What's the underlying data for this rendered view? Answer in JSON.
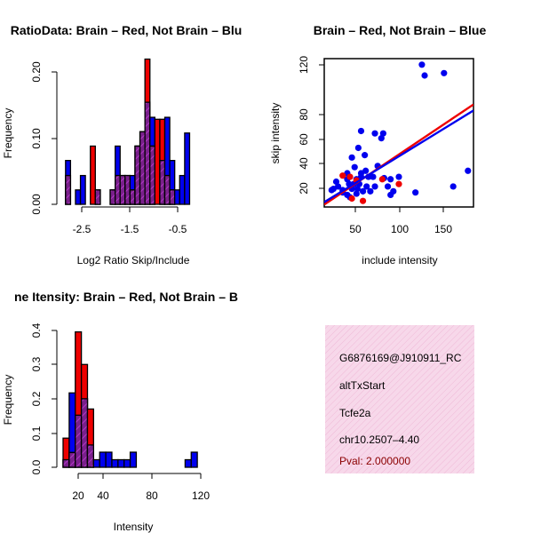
{
  "charts": [
    {
      "id": "ratio",
      "type": "bar",
      "title": "RatioData: Brain – Red, Not Brain – Blu",
      "xlabel": "Log2 Ratio Skip/Include",
      "ylabel": "Frequency",
      "xticks": [
        "-2.5",
        "-1.5",
        "-0.5"
      ],
      "yticks": [
        "0.00",
        "0.10",
        "0.20"
      ]
    },
    {
      "id": "scatter",
      "type": "scatter",
      "title": "Brain – Red, Not Brain – Blue",
      "xlabel": "include intensity",
      "ylabel": "skip intensity",
      "xticks": [
        "50",
        "100",
        "150"
      ],
      "yticks": [
        "20",
        "40",
        "60",
        "80",
        "120"
      ]
    },
    {
      "id": "intensity",
      "type": "bar",
      "title": "ne Itensity: Brain – Red, Not Brain – B",
      "xlabel": "Intensity",
      "ylabel": "Frequency",
      "xticks": [
        "20",
        "40",
        "80",
        "120"
      ],
      "yticks": [
        "0.0",
        "0.1",
        "0.2",
        "0.3",
        "0.4"
      ]
    }
  ],
  "chart_data": [
    {
      "type": "bar",
      "title": "RatioData: Brain – Red, Not Brain – Blu",
      "xlabel": "Log2 Ratio Skip/Include",
      "ylabel": "Frequency",
      "xlim": [
        -2.85,
        0.05
      ],
      "ylim": [
        0,
        0.22
      ],
      "bin_width": 0.1,
      "bin_starts": [
        -2.8,
        -2.7,
        -2.6,
        -2.5,
        -2.4,
        -2.3,
        -2.2,
        -2.1,
        -2.0,
        -1.9,
        -1.8,
        -1.7,
        -1.6,
        -1.5,
        -1.4,
        -1.3,
        -1.2,
        -1.1,
        -1.0,
        -0.9,
        -0.8,
        -0.7,
        -0.6,
        -0.5,
        -0.4,
        -0.3,
        -0.2,
        -0.1
      ],
      "series": [
        {
          "name": "Not Brain",
          "color": "#0000ee",
          "values": [
            0.067,
            0,
            0.022,
            0.044,
            0,
            0,
            0.022,
            0,
            0,
            0.022,
            0.089,
            0.044,
            0.044,
            0.044,
            0.089,
            0.111,
            0.156,
            0.133,
            0,
            0.067,
            0.133,
            0.067,
            0.022,
            0.044,
            0.109,
            0,
            0,
            0
          ]
        },
        {
          "name": "Brain",
          "color": "#ee0000",
          "values": [
            0.044,
            0,
            0,
            0,
            0,
            0.089,
            0.022,
            0,
            0,
            0.022,
            0.044,
            0.044,
            0.044,
            0.022,
            0.089,
            0.111,
            0.222,
            0.089,
            0.13,
            0.13,
            0.044,
            0.022,
            0,
            0,
            0,
            0,
            0,
            0
          ]
        }
      ]
    },
    {
      "type": "scatter",
      "title": "Brain – Red, Not Brain – Blue",
      "xlabel": "include intensity",
      "ylabel": "skip intensity",
      "xlim": [
        20,
        182
      ],
      "ylim": [
        5,
        128
      ],
      "series": [
        {
          "name": "Not Brain",
          "color": "#0000ee",
          "points": [
            [
              126,
              123
            ],
            [
              150,
              116
            ],
            [
              129,
              114
            ],
            [
              60,
              68
            ],
            [
              75,
              66
            ],
            [
              84,
              66
            ],
            [
              82,
              62
            ],
            [
              57,
              54
            ],
            [
              64,
              48
            ],
            [
              50,
              46
            ],
            [
              176,
              35
            ],
            [
              53,
              38
            ],
            [
              45,
              33
            ],
            [
              60,
              33
            ],
            [
              65,
              35
            ],
            [
              78,
              39
            ],
            [
              73,
              30
            ],
            [
              33,
              26
            ],
            [
              45,
              28
            ],
            [
              55,
              28
            ],
            [
              60,
              30
            ],
            [
              68,
              30
            ],
            [
              85,
              29
            ],
            [
              92,
              28
            ],
            [
              101,
              30
            ],
            [
              47,
              24
            ],
            [
              52,
              24
            ],
            [
              58,
              24
            ],
            [
              66,
              22
            ],
            [
              75,
              22
            ],
            [
              89,
              22
            ],
            [
              35,
              22
            ],
            [
              28,
              19
            ],
            [
              40,
              19
            ],
            [
              50,
              20
            ],
            [
              56,
              20
            ],
            [
              62,
              18
            ],
            [
              70,
              18
            ],
            [
              95,
              18
            ],
            [
              160,
              22
            ],
            [
              119,
              17
            ],
            [
              92,
              15
            ],
            [
              40,
              17
            ],
            [
              45,
              15
            ],
            [
              30,
              20
            ],
            [
              48,
              13
            ],
            [
              55,
              16
            ]
          ],
          "fit": [
            [
              20,
              9
            ],
            [
              182,
              85
            ]
          ]
        },
        {
          "name": "Brain",
          "color": "#ee0000",
          "points": [
            [
              83,
              28
            ],
            [
              101,
              24
            ],
            [
              50,
              12
            ],
            [
              62,
              10
            ],
            [
              40,
              31
            ],
            [
              48,
              30
            ],
            [
              55,
              27
            ]
          ],
          "fit": [
            [
              20,
              7
            ],
            [
              182,
              90
            ]
          ]
        }
      ]
    },
    {
      "type": "bar",
      "title": "ne Itensity: Brain – Red, Not Brain – B",
      "xlabel": "Intensity",
      "ylabel": "Frequency",
      "xlim": [
        10,
        125
      ],
      "ylim": [
        0,
        0.42
      ],
      "bin_width": 5,
      "bin_starts": [
        10,
        15,
        20,
        25,
        30,
        35,
        40,
        45,
        50,
        55,
        60,
        65,
        70,
        75,
        80,
        85,
        90,
        95,
        100,
        105,
        110,
        115,
        120
      ],
      "series": [
        {
          "name": "Not Brain",
          "color": "#0000ee",
          "values": [
            0.022,
            0.217,
            0.152,
            0.2,
            0.065,
            0.022,
            0.044,
            0.044,
            0.022,
            0.022,
            0.022,
            0.044,
            0,
            0,
            0,
            0,
            0,
            0,
            0,
            0,
            0.022,
            0.044,
            0
          ]
        },
        {
          "name": "Brain",
          "color": "#ee0000",
          "values": [
            0.085,
            0.043,
            0.395,
            0.3,
            0.17,
            0,
            0,
            0,
            0,
            0,
            0,
            0,
            0,
            0,
            0,
            0,
            0,
            0,
            0,
            0,
            0,
            0,
            0
          ]
        }
      ]
    }
  ],
  "info": {
    "lines": [
      "G6876169@J910911_RC",
      "altTxStart",
      "Tcfe2a",
      "chr10.2507–4.40"
    ],
    "pval": "Pval: 2.000000",
    "pval_color": "#8b0000"
  },
  "colors": {
    "blue": "#0000ee",
    "red": "#ee0000",
    "purple": "#7a1f8c",
    "panel_fill": "#f7d8ea"
  }
}
